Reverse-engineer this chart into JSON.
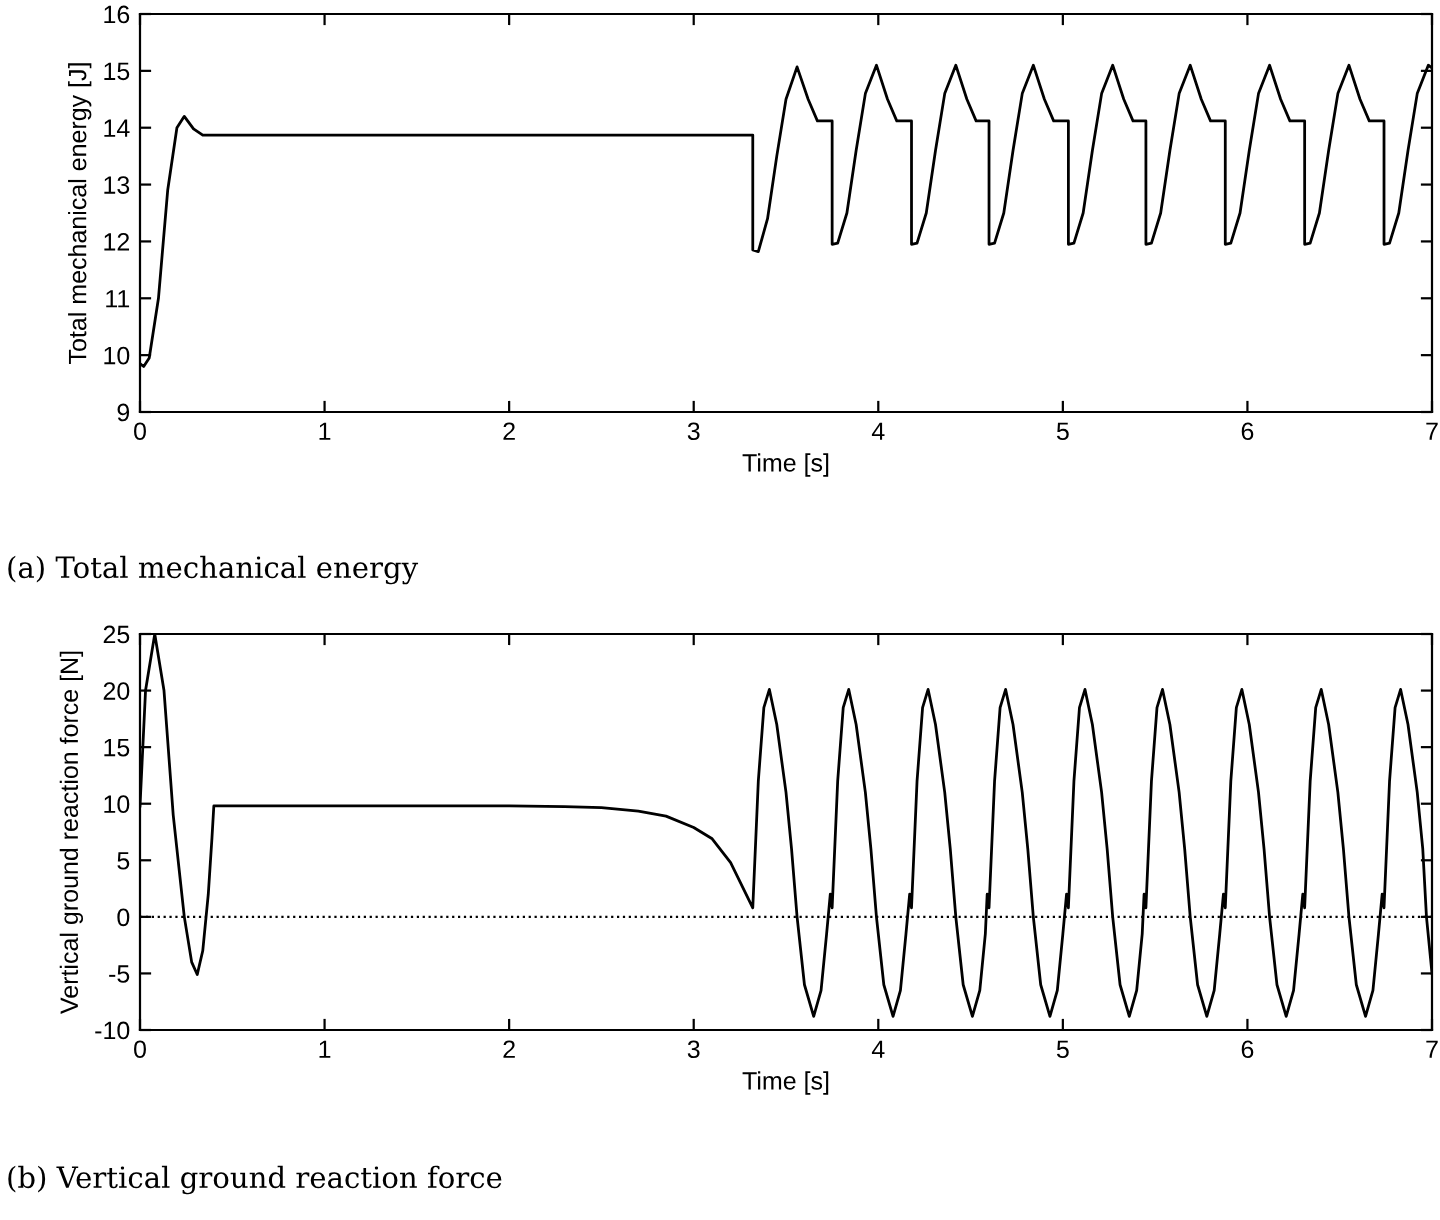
{
  "chart_data": [
    {
      "type": "line",
      "xlabel": "Time [s]",
      "ylabel": "Total mechanical energy [J]",
      "xlim": [
        0,
        7
      ],
      "ylim": [
        9,
        16
      ],
      "xticks": [
        0,
        1,
        2,
        3,
        4,
        5,
        6,
        7
      ],
      "yticks": [
        9,
        10,
        11,
        12,
        13,
        14,
        15,
        16
      ],
      "grid": false,
      "annotations": [
        "(a) Total mechanical energy"
      ],
      "series": [
        {
          "color": "#000000",
          "x": [
            0,
            0.02,
            0.05,
            0.1,
            0.15,
            0.2,
            0.24,
            0.29,
            0.34,
            3.32,
            3.32,
            3.35,
            3.4,
            3.45,
            3.5,
            3.56,
            3.62,
            3.67,
            3.75,
            3.75,
            3.78,
            3.83,
            3.88,
            3.93,
            3.99,
            4.05,
            4.1,
            4.18,
            4.18,
            4.21,
            4.26,
            4.31,
            4.36,
            4.42,
            4.48,
            4.53,
            4.6,
            4.6,
            4.63,
            4.68,
            4.73,
            4.78,
            4.84,
            4.9,
            4.95,
            5.03,
            5.03,
            5.06,
            5.11,
            5.16,
            5.21,
            5.27,
            5.33,
            5.38,
            5.45,
            5.45,
            5.48,
            5.53,
            5.58,
            5.63,
            5.69,
            5.75,
            5.8,
            5.88,
            5.88,
            5.91,
            5.96,
            6.01,
            6.06,
            6.12,
            6.18,
            6.23,
            6.31,
            6.31,
            6.34,
            6.39,
            6.44,
            6.49,
            6.55,
            6.61,
            6.66,
            6.74,
            6.74,
            6.77,
            6.82,
            6.87,
            6.92,
            6.98,
            7.0
          ],
          "values": [
            9.85,
            9.8,
            9.95,
            11.0,
            12.9,
            14.0,
            14.2,
            13.98,
            13.87,
            13.87,
            11.85,
            11.82,
            12.4,
            13.5,
            14.5,
            15.07,
            14.5,
            14.12,
            14.12,
            11.95,
            11.97,
            12.5,
            13.6,
            14.6,
            15.1,
            14.5,
            14.12,
            14.12,
            11.95,
            11.97,
            12.5,
            13.6,
            14.6,
            15.1,
            14.5,
            14.12,
            14.12,
            11.95,
            11.97,
            12.5,
            13.6,
            14.6,
            15.1,
            14.5,
            14.12,
            14.12,
            11.95,
            11.97,
            12.5,
            13.6,
            14.6,
            15.1,
            14.5,
            14.12,
            14.12,
            11.95,
            11.97,
            12.5,
            13.6,
            14.6,
            15.1,
            14.5,
            14.12,
            14.12,
            11.95,
            11.97,
            12.5,
            13.6,
            14.6,
            15.1,
            14.5,
            14.12,
            14.12,
            11.95,
            11.97,
            12.5,
            13.6,
            14.6,
            15.1,
            14.5,
            14.12,
            14.12,
            11.95,
            11.97,
            12.5,
            13.6,
            14.6,
            15.1,
            15.05
          ]
        }
      ]
    },
    {
      "type": "line",
      "xlabel": "Time [s]",
      "ylabel": "Vertical ground reaction force [N]",
      "xlim": [
        0,
        7
      ],
      "ylim": [
        -10,
        25
      ],
      "xticks": [
        0,
        1,
        2,
        3,
        4,
        5,
        6,
        7
      ],
      "yticks": [
        -10,
        -5,
        0,
        5,
        10,
        15,
        20,
        25
      ],
      "grid": false,
      "annotations": [
        "(b) Vertical ground reaction force"
      ],
      "ref_lines": [
        {
          "axis": "y",
          "value": 0,
          "color": "#000000",
          "line_style": "dotted"
        }
      ],
      "series": [
        {
          "color": "#000000",
          "x": [
            0,
            0.03,
            0.08,
            0.13,
            0.18,
            0.24,
            0.28,
            0.31,
            0.34,
            0.37,
            0.39,
            0.4,
            1.0,
            2.0,
            2.3,
            2.5,
            2.7,
            2.85,
            3.0,
            3.1,
            3.2,
            3.32,
            3.35,
            3.38,
            3.41,
            3.45,
            3.5,
            3.53,
            3.56,
            3.6,
            3.65,
            3.69,
            3.72,
            3.74,
            3.75,
            3.78,
            3.81,
            3.84,
            3.88,
            3.93,
            3.96,
            3.99,
            4.03,
            4.08,
            4.12,
            4.15,
            4.17,
            4.18,
            4.21,
            4.24,
            4.27,
            4.31,
            4.36,
            4.39,
            4.42,
            4.46,
            4.51,
            4.55,
            4.58,
            4.59,
            4.6,
            4.63,
            4.66,
            4.69,
            4.73,
            4.78,
            4.81,
            4.84,
            4.88,
            4.93,
            4.97,
            5.0,
            5.02,
            5.03,
            5.06,
            5.09,
            5.12,
            5.16,
            5.21,
            5.24,
            5.27,
            5.31,
            5.36,
            5.4,
            5.43,
            5.44,
            5.45,
            5.48,
            5.51,
            5.54,
            5.58,
            5.63,
            5.66,
            5.69,
            5.73,
            5.78,
            5.82,
            5.85,
            5.87,
            5.88,
            5.91,
            5.94,
            5.97,
            6.01,
            6.06,
            6.09,
            6.12,
            6.16,
            6.21,
            6.25,
            6.28,
            6.3,
            6.31,
            6.34,
            6.37,
            6.4,
            6.44,
            6.49,
            6.52,
            6.55,
            6.59,
            6.64,
            6.68,
            6.71,
            6.73,
            6.74,
            6.77,
            6.8,
            6.83,
            6.87,
            6.92,
            6.95,
            6.97,
            7.0
          ],
          "values": [
            9.8,
            20,
            25,
            20,
            9,
            0,
            -4,
            -5.1,
            -3,
            2,
            7,
            9.8,
            9.8,
            9.8,
            9.75,
            9.65,
            9.35,
            8.9,
            7.9,
            6.9,
            4.8,
            0.8,
            12,
            18.5,
            20.1,
            17,
            11,
            6,
            0,
            -6,
            -8.8,
            -6.5,
            -1.5,
            2.0,
            0.8,
            12,
            18.5,
            20.1,
            17,
            11,
            6,
            0,
            -6,
            -8.8,
            -6.5,
            -1.5,
            2.0,
            0.8,
            12,
            18.5,
            20.1,
            17,
            11,
            6,
            0,
            -6,
            -8.8,
            -6.5,
            -1.5,
            2.0,
            0.8,
            12,
            18.5,
            20.1,
            17,
            11,
            6,
            0,
            -6,
            -8.8,
            -6.5,
            -1.5,
            2.0,
            0.8,
            12,
            18.5,
            20.1,
            17,
            11,
            6,
            0,
            -6,
            -8.8,
            -6.5,
            -1.5,
            2.0,
            0.8,
            12,
            18.5,
            20.1,
            17,
            11,
            6,
            0,
            -6,
            -8.8,
            -6.5,
            -1.5,
            2.0,
            0.8,
            12,
            18.5,
            20.1,
            17,
            11,
            6,
            0,
            -6,
            -8.8,
            -6.5,
            -1.5,
            2.0,
            0.8,
            12,
            18.5,
            20.1,
            17,
            11,
            6,
            0,
            -6,
            -8.8,
            -6.5,
            -1.5,
            2.0,
            0.8,
            12,
            18.5,
            20.1,
            17,
            11,
            6,
            0,
            -5
          ]
        }
      ]
    }
  ]
}
